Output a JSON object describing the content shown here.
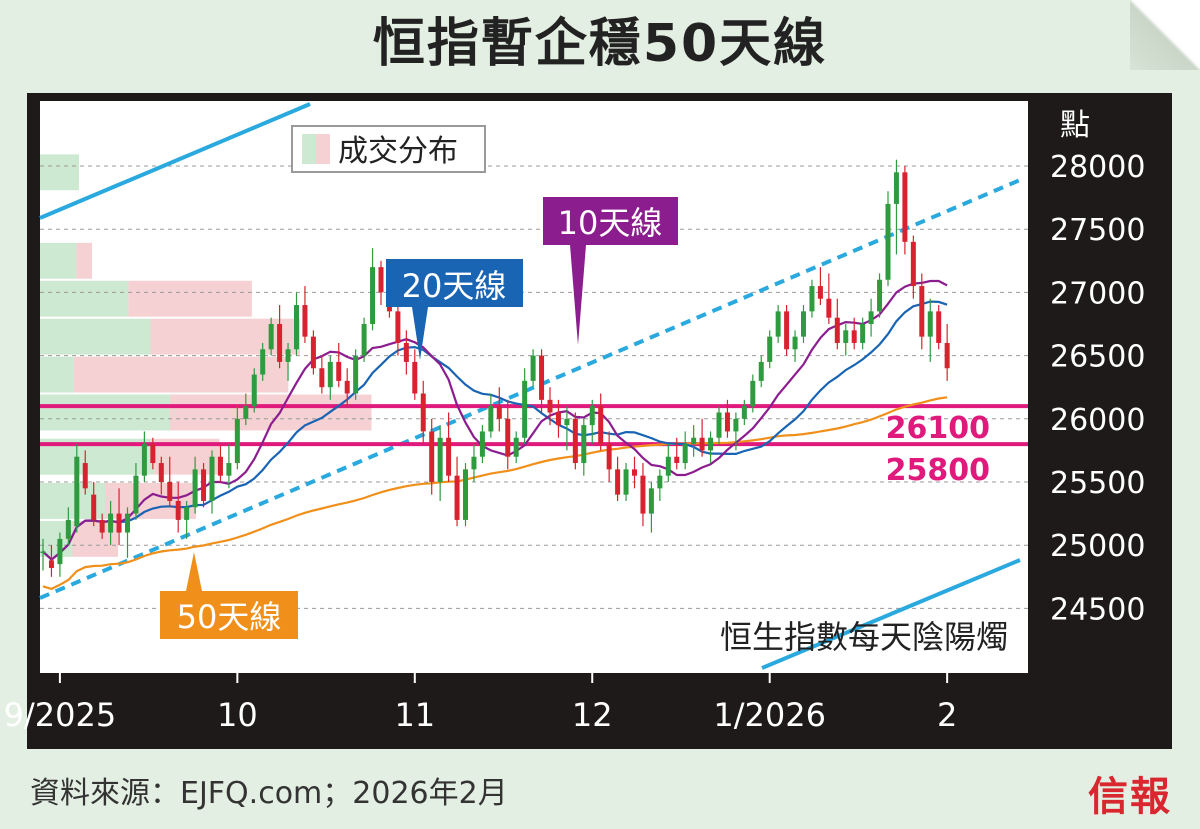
{
  "title": "恒指暫企穩50天線",
  "source": "資料來源：EJFQ.com；2026年2月",
  "publisher": "信報",
  "chart_data": {
    "type": "candlestick",
    "title": "恒指暫企穩50天線",
    "ylabel": "點",
    "ylim": [
      24000,
      28400
    ],
    "yticks": [
      28000,
      27500,
      27000,
      26500,
      26000,
      25500,
      25000,
      24500
    ],
    "x_tick_labels": [
      {
        "label": "9/2025",
        "index": 2
      },
      {
        "label": "10",
        "index": 23
      },
      {
        "label": "11",
        "index": 44
      },
      {
        "label": "12",
        "index": 65
      },
      {
        "label": "1/2026",
        "index": 86
      },
      {
        "label": "2",
        "index": 107
      }
    ],
    "legend": {
      "volume_profile": "成交分布"
    },
    "annotations": {
      "ma10": "10天線",
      "ma20": "20天線",
      "ma50": "50天線",
      "level_26100": "26100",
      "level_25800": "25800",
      "candles_note": "恒生指數每天陰陽燭"
    },
    "levels": [
      26100,
      25800
    ],
    "colors": {
      "up": "#2e9b3f",
      "down": "#d8222f",
      "ma10": "#8b1d8f",
      "ma20": "#1a64b4",
      "ma50": "#f0901a",
      "level": "#e0197c",
      "trend": "#2aa9df",
      "vol_up": "#cde9d2",
      "vol_down": "#f6d1d3"
    },
    "volume_profile": [
      {
        "price": 27950,
        "up": 30,
        "down": 0
      },
      {
        "price": 27350,
        "up": 0,
        "down": 0
      },
      {
        "price": 27250,
        "up": 28,
        "down": 12
      },
      {
        "price": 26950,
        "up": 68,
        "down": 95
      },
      {
        "price": 26650,
        "up": 85,
        "down": 115
      },
      {
        "price": 26350,
        "up": 26,
        "down": 165
      },
      {
        "price": 26050,
        "up": 100,
        "down": 155
      },
      {
        "price": 25700,
        "up": 88,
        "down": 50
      },
      {
        "price": 25350,
        "up": 50,
        "down": 70
      },
      {
        "price": 25050,
        "up": 25,
        "down": 35
      }
    ],
    "candles": [
      {
        "o": 24950,
        "h": 25050,
        "l": 24800,
        "c": 24950
      },
      {
        "o": 24880,
        "h": 25000,
        "l": 24750,
        "c": 24820
      },
      {
        "o": 24850,
        "h": 25100,
        "l": 24750,
        "c": 25050
      },
      {
        "o": 25050,
        "h": 25300,
        "l": 25000,
        "c": 25200
      },
      {
        "o": 25150,
        "h": 25800,
        "l": 25100,
        "c": 25700
      },
      {
        "o": 25650,
        "h": 25750,
        "l": 25400,
        "c": 25450
      },
      {
        "o": 25400,
        "h": 25500,
        "l": 25150,
        "c": 25200
      },
      {
        "o": 25200,
        "h": 25250,
        "l": 25050,
        "c": 25100
      },
      {
        "o": 25100,
        "h": 25350,
        "l": 25000,
        "c": 25250
      },
      {
        "o": 25250,
        "h": 25450,
        "l": 25000,
        "c": 25100
      },
      {
        "o": 25100,
        "h": 25300,
        "l": 24900,
        "c": 25250
      },
      {
        "o": 25250,
        "h": 25650,
        "l": 25200,
        "c": 25550
      },
      {
        "o": 25550,
        "h": 25900,
        "l": 25500,
        "c": 25800
      },
      {
        "o": 25800,
        "h": 25850,
        "l": 25600,
        "c": 25650
      },
      {
        "o": 25650,
        "h": 25700,
        "l": 25400,
        "c": 25500
      },
      {
        "o": 25500,
        "h": 25700,
        "l": 25300,
        "c": 25350
      },
      {
        "o": 25350,
        "h": 25500,
        "l": 25100,
        "c": 25200
      },
      {
        "o": 25200,
        "h": 25350,
        "l": 25050,
        "c": 25300
      },
      {
        "o": 25300,
        "h": 25700,
        "l": 25250,
        "c": 25600
      },
      {
        "o": 25600,
        "h": 25650,
        "l": 25300,
        "c": 25350
      },
      {
        "o": 25350,
        "h": 25750,
        "l": 25250,
        "c": 25700
      },
      {
        "o": 25700,
        "h": 25800,
        "l": 25500,
        "c": 25550
      },
      {
        "o": 25550,
        "h": 25800,
        "l": 25450,
        "c": 25650
      },
      {
        "o": 25650,
        "h": 26100,
        "l": 25600,
        "c": 26000
      },
      {
        "o": 26000,
        "h": 26200,
        "l": 25950,
        "c": 26100
      },
      {
        "o": 26100,
        "h": 26400,
        "l": 26050,
        "c": 26350
      },
      {
        "o": 26350,
        "h": 26600,
        "l": 26300,
        "c": 26550
      },
      {
        "o": 26550,
        "h": 26800,
        "l": 26500,
        "c": 26750
      },
      {
        "o": 26750,
        "h": 26900,
        "l": 26400,
        "c": 26450
      },
      {
        "o": 26450,
        "h": 26600,
        "l": 26300,
        "c": 26550
      },
      {
        "o": 26550,
        "h": 27000,
        "l": 26500,
        "c": 26900
      },
      {
        "o": 26900,
        "h": 27050,
        "l": 26600,
        "c": 26650
      },
      {
        "o": 26650,
        "h": 26700,
        "l": 26350,
        "c": 26400
      },
      {
        "o": 26400,
        "h": 26500,
        "l": 26200,
        "c": 26250
      },
      {
        "o": 26250,
        "h": 26500,
        "l": 26150,
        "c": 26450
      },
      {
        "o": 26450,
        "h": 26600,
        "l": 26250,
        "c": 26300
      },
      {
        "o": 26300,
        "h": 26400,
        "l": 26100,
        "c": 26200
      },
      {
        "o": 26200,
        "h": 26550,
        "l": 26150,
        "c": 26500
      },
      {
        "o": 26500,
        "h": 26800,
        "l": 26450,
        "c": 26750
      },
      {
        "o": 26750,
        "h": 27350,
        "l": 26700,
        "c": 27200
      },
      {
        "o": 27200,
        "h": 27250,
        "l": 26900,
        "c": 27000
      },
      {
        "o": 27000,
        "h": 27100,
        "l": 26800,
        "c": 26850
      },
      {
        "o": 26850,
        "h": 26950,
        "l": 26500,
        "c": 26600
      },
      {
        "o": 26600,
        "h": 26700,
        "l": 26350,
        "c": 26450
      },
      {
        "o": 26450,
        "h": 26550,
        "l": 26150,
        "c": 26200
      },
      {
        "o": 26200,
        "h": 26300,
        "l": 25800,
        "c": 25900
      },
      {
        "o": 25900,
        "h": 26000,
        "l": 25400,
        "c": 25500
      },
      {
        "o": 25500,
        "h": 25950,
        "l": 25350,
        "c": 25850
      },
      {
        "o": 25850,
        "h": 26050,
        "l": 25500,
        "c": 25550
      },
      {
        "o": 25550,
        "h": 25700,
        "l": 25150,
        "c": 25200
      },
      {
        "o": 25200,
        "h": 25650,
        "l": 25150,
        "c": 25600
      },
      {
        "o": 25600,
        "h": 25800,
        "l": 25500,
        "c": 25700
      },
      {
        "o": 25700,
        "h": 25950,
        "l": 25650,
        "c": 25900
      },
      {
        "o": 25900,
        "h": 26200,
        "l": 25850,
        "c": 26100
      },
      {
        "o": 26100,
        "h": 26250,
        "l": 25900,
        "c": 26000
      },
      {
        "o": 26000,
        "h": 26150,
        "l": 25600,
        "c": 25700
      },
      {
        "o": 25700,
        "h": 25900,
        "l": 25650,
        "c": 25850
      },
      {
        "o": 25850,
        "h": 26400,
        "l": 25800,
        "c": 26300
      },
      {
        "o": 26300,
        "h": 26550,
        "l": 26250,
        "c": 26500
      },
      {
        "o": 26500,
        "h": 26550,
        "l": 26050,
        "c": 26150
      },
      {
        "o": 26150,
        "h": 26250,
        "l": 25950,
        "c": 26050
      },
      {
        "o": 26050,
        "h": 26150,
        "l": 25850,
        "c": 25950
      },
      {
        "o": 25950,
        "h": 26100,
        "l": 25750,
        "c": 26000
      },
      {
        "o": 26000,
        "h": 26050,
        "l": 25600,
        "c": 25650
      },
      {
        "o": 25650,
        "h": 26000,
        "l": 25550,
        "c": 25950
      },
      {
        "o": 25950,
        "h": 26150,
        "l": 25800,
        "c": 26100
      },
      {
        "o": 26100,
        "h": 26200,
        "l": 25750,
        "c": 25800
      },
      {
        "o": 25800,
        "h": 25900,
        "l": 25500,
        "c": 25600
      },
      {
        "o": 25600,
        "h": 25700,
        "l": 25350,
        "c": 25400
      },
      {
        "o": 25400,
        "h": 25650,
        "l": 25350,
        "c": 25600
      },
      {
        "o": 25600,
        "h": 25700,
        "l": 25450,
        "c": 25550
      },
      {
        "o": 25550,
        "h": 25650,
        "l": 25150,
        "c": 25250
      },
      {
        "o": 25250,
        "h": 25500,
        "l": 25100,
        "c": 25450
      },
      {
        "o": 25450,
        "h": 25600,
        "l": 25350,
        "c": 25550
      },
      {
        "o": 25550,
        "h": 25800,
        "l": 25500,
        "c": 25700
      },
      {
        "o": 25700,
        "h": 25850,
        "l": 25600,
        "c": 25650
      },
      {
        "o": 25650,
        "h": 25900,
        "l": 25600,
        "c": 25800
      },
      {
        "o": 25800,
        "h": 25950,
        "l": 25700,
        "c": 25850
      },
      {
        "o": 25850,
        "h": 26000,
        "l": 25700,
        "c": 25750
      },
      {
        "o": 25750,
        "h": 25900,
        "l": 25650,
        "c": 25850
      },
      {
        "o": 25850,
        "h": 26100,
        "l": 25800,
        "c": 26050
      },
      {
        "o": 26050,
        "h": 26150,
        "l": 25850,
        "c": 25900
      },
      {
        "o": 25900,
        "h": 26050,
        "l": 25750,
        "c": 26000
      },
      {
        "o": 26000,
        "h": 26150,
        "l": 25950,
        "c": 26100
      },
      {
        "o": 26100,
        "h": 26350,
        "l": 26050,
        "c": 26300
      },
      {
        "o": 26300,
        "h": 26500,
        "l": 26250,
        "c": 26450
      },
      {
        "o": 26450,
        "h": 26700,
        "l": 26400,
        "c": 26650
      },
      {
        "o": 26650,
        "h": 26900,
        "l": 26600,
        "c": 26850
      },
      {
        "o": 26850,
        "h": 26900,
        "l": 26500,
        "c": 26550
      },
      {
        "o": 26550,
        "h": 26700,
        "l": 26450,
        "c": 26650
      },
      {
        "o": 26650,
        "h": 26900,
        "l": 26600,
        "c": 26850
      },
      {
        "o": 26850,
        "h": 27100,
        "l": 26800,
        "c": 27050
      },
      {
        "o": 27050,
        "h": 27200,
        "l": 26900,
        "c": 26950
      },
      {
        "o": 26950,
        "h": 27150,
        "l": 26750,
        "c": 26800
      },
      {
        "o": 26800,
        "h": 26950,
        "l": 26550,
        "c": 26600
      },
      {
        "o": 26600,
        "h": 26750,
        "l": 26500,
        "c": 26700
      },
      {
        "o": 26700,
        "h": 26800,
        "l": 26550,
        "c": 26600
      },
      {
        "o": 26600,
        "h": 26800,
        "l": 26550,
        "c": 26750
      },
      {
        "o": 26750,
        "h": 26950,
        "l": 26650,
        "c": 26850
      },
      {
        "o": 26850,
        "h": 27150,
        "l": 26800,
        "c": 27100
      },
      {
        "o": 27100,
        "h": 27800,
        "l": 27050,
        "c": 27700
      },
      {
        "o": 27700,
        "h": 28050,
        "l": 27300,
        "c": 27950
      },
      {
        "o": 27950,
        "h": 28000,
        "l": 27300,
        "c": 27400
      },
      {
        "o": 27400,
        "h": 27450,
        "l": 26950,
        "c": 27050
      },
      {
        "o": 27050,
        "h": 27150,
        "l": 26550,
        "c": 26650
      },
      {
        "o": 26650,
        "h": 26950,
        "l": 26450,
        "c": 26850
      },
      {
        "o": 26850,
        "h": 26900,
        "l": 26550,
        "c": 26600
      },
      {
        "o": 26600,
        "h": 26750,
        "l": 26300,
        "c": 26400
      }
    ]
  }
}
